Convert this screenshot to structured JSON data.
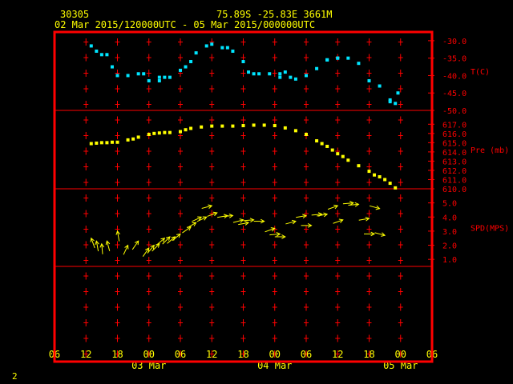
{
  "header": {
    "station_id": "30305",
    "location": "75.89S   -25.83E   3661M",
    "time_range": "02 Mar 2015/120000UTC - 05 Mar 2015/000000UTC"
  },
  "footer": {
    "page": "2"
  },
  "colors": {
    "background": "#000000",
    "frame": "#ff0000",
    "grid": "#ff0000",
    "axis_text": "#ffff00",
    "header_text": "#ffff00",
    "temperature": "#00e5ff",
    "pressure": "#ffff00",
    "wind": "#ffff00"
  },
  "chart_data": [
    {
      "type": "scatter",
      "panel": "temperature",
      "ylabel": "T(C)",
      "ylim": [
        -50,
        -27.5
      ],
      "yticks": [
        -30,
        -35,
        -40,
        -45,
        -50
      ],
      "ytick_labels": [
        "-30.0",
        "-35.0",
        "-40.0",
        "-45.0",
        "-50.0"
      ],
      "x": [
        "02 Mar 13:00",
        "02 Mar 14:00",
        "02 Mar 15:00",
        "02 Mar 16:00",
        "02 Mar 17:00",
        "02 Mar 18:00",
        "02 Mar 20:00",
        "02 Mar 22:00",
        "02 Mar 23:00",
        "03 Mar 02:00",
        "03 Mar 03:00",
        "03 Mar 04:00",
        "03 Mar 06:00",
        "03 Mar 07:00",
        "03 Mar 08:00",
        "03 Mar 09:00",
        "03 Mar 11:00",
        "03 Mar 12:00",
        "03 Mar 14:00",
        "03 Mar 15:00",
        "03 Mar 16:00",
        "03 Mar 18:00",
        "03 Mar 19:00",
        "03 Mar 20:00",
        "03 Mar 21:00",
        "03 Mar 23:00",
        "04 Mar 01:00",
        "04 Mar 02:00",
        "04 Mar 03:00",
        "04 Mar 04:00",
        "04 Mar 06:00",
        "04 Mar 08:00",
        "04 Mar 10:00",
        "04 Mar 12:00",
        "04 Mar 14:00",
        "04 Mar 16:00",
        "04 Mar 18:00",
        "04 Mar 20:00",
        "04 Mar 22:00",
        "04 Mar 23:00"
      ],
      "values": [
        -31.5,
        -33,
        -34,
        -34,
        -37.5,
        -40,
        -40,
        -39.5,
        -39.5,
        -41.5,
        -40.5,
        -40.5,
        -38.5,
        -37.5,
        -36,
        -33.5,
        -31.5,
        -31,
        -32,
        -32,
        -33,
        -36,
        -39,
        -39.5,
        -39.5,
        -39.5,
        -39.5,
        -39,
        -40.5,
        -41,
        -40,
        -38,
        -35.5,
        -35,
        -35,
        -36.5,
        -41.5,
        -43,
        -47,
        -48
      ],
      "values_extra": [
        {
          "x": "03 Mar 00:00",
          "y": -41.5
        },
        {
          "x": "03 Mar 02:00",
          "y": -40.5
        },
        {
          "x": "04 Mar 01:00",
          "y": -40.5
        },
        {
          "x": "04 Mar 10:00",
          "y": -35.5
        },
        {
          "x": "04 Mar 12:00",
          "y": -35
        },
        {
          "x": "04 Mar 22:00",
          "y": -47.5
        },
        {
          "x": "04 Mar 23:30",
          "y": -45
        }
      ]
    },
    {
      "type": "scatter",
      "panel": "pressure",
      "ylabel": "Pre (mb)",
      "ylim": [
        610,
        618.5
      ],
      "yticks": [
        610,
        611,
        612,
        613,
        614,
        615,
        616,
        617
      ],
      "ytick_labels": [
        "610.0",
        "611.0",
        "612.0",
        "613.0",
        "614.0",
        "615.0",
        "616.0",
        "617.0"
      ],
      "x": [
        "02 Mar 13:00",
        "02 Mar 14:00",
        "02 Mar 15:00",
        "02 Mar 16:00",
        "02 Mar 17:00",
        "02 Mar 18:00",
        "02 Mar 20:00",
        "02 Mar 21:00",
        "02 Mar 22:00",
        "03 Mar 00:00",
        "03 Mar 01:00",
        "03 Mar 02:00",
        "03 Mar 03:00",
        "03 Mar 04:00",
        "03 Mar 06:00",
        "03 Mar 07:00",
        "03 Mar 08:00",
        "03 Mar 10:00",
        "03 Mar 12:00",
        "03 Mar 14:00",
        "03 Mar 16:00",
        "03 Mar 18:00",
        "03 Mar 20:00",
        "03 Mar 22:00",
        "04 Mar 00:00",
        "04 Mar 02:00",
        "04 Mar 04:00",
        "04 Mar 06:00",
        "04 Mar 08:00",
        "04 Mar 09:00",
        "04 Mar 10:00",
        "04 Mar 11:00",
        "04 Mar 12:00",
        "04 Mar 13:00",
        "04 Mar 14:00",
        "04 Mar 16:00",
        "04 Mar 18:00",
        "04 Mar 19:00",
        "04 Mar 20:00",
        "04 Mar 21:00",
        "04 Mar 22:00",
        "04 Mar 23:00"
      ],
      "values": [
        614.9,
        614.95,
        615,
        615,
        615.05,
        615.05,
        615.3,
        615.4,
        615.6,
        615.9,
        616,
        616.05,
        616.1,
        616.1,
        616.2,
        616.4,
        616.55,
        616.7,
        616.8,
        616.8,
        616.8,
        616.85,
        616.9,
        616.9,
        616.85,
        616.6,
        616.3,
        615.9,
        615.2,
        614.9,
        614.6,
        614.2,
        613.8,
        613.5,
        613.1,
        612.5,
        611.9,
        611.5,
        611.3,
        611,
        610.6,
        610.1
      ]
    },
    {
      "type": "wind_barb",
      "panel": "wind",
      "ylabel": "SPD(MPS)",
      "ylim": [
        0.5,
        6.0
      ],
      "yticks": [
        1,
        2,
        3,
        4,
        5
      ],
      "ytick_labels": [
        "1.0",
        "2.0",
        "3.0",
        "4.0",
        "5.0"
      ],
      "x": [
        "02 Mar 13:00",
        "02 Mar 14:00",
        "02 Mar 15:00",
        "02 Mar 16:00",
        "02 Mar 18:00",
        "02 Mar 20:00",
        "02 Mar 22:00",
        "03 Mar 00:00",
        "03 Mar 01:00",
        "03 Mar 02:00",
        "03 Mar 03:00",
        "03 Mar 04:00",
        "03 Mar 05:00",
        "03 Mar 06:00",
        "03 Mar 08:00",
        "03 Mar 09:00",
        "03 Mar 10:00",
        "03 Mar 11:00",
        "03 Mar 12:00",
        "03 Mar 13:00",
        "03 Mar 15:00",
        "03 Mar 16:00",
        "03 Mar 18:00",
        "03 Mar 19:00",
        "03 Mar 20:00",
        "03 Mar 22:00",
        "04 Mar 00:00",
        "04 Mar 01:00",
        "04 Mar 02:00",
        "04 Mar 04:00",
        "04 Mar 06:00",
        "04 Mar 07:00",
        "04 Mar 09:00",
        "04 Mar 10:00",
        "04 Mar 12:00",
        "04 Mar 13:00",
        "04 Mar 15:00",
        "04 Mar 16:00",
        "04 Mar 18:00",
        "04 Mar 19:00",
        "04 Mar 20:00",
        "04 Mar 21:00"
      ],
      "speed": [
        2.5,
        2.3,
        2.1,
        2.3,
        3.0,
        2.0,
        2.3,
        1.8,
        2.0,
        2.1,
        2.5,
        2.6,
        2.6,
        2.8,
        3.3,
        3.6,
        4.0,
        4.0,
        4.8,
        4.3,
        4.1,
        4.1,
        3.8,
        3.6,
        3.8,
        3.7,
        3.2,
        2.8,
        2.6,
        3.7,
        4.1,
        3.4,
        4.2,
        4.2,
        4.8,
        3.8,
        5.0,
        4.9,
        3.9,
        2.8,
        4.6,
        2.7
      ],
      "from_direction_deg": [
        160,
        170,
        175,
        165,
        170,
        205,
        215,
        215,
        220,
        225,
        230,
        225,
        230,
        230,
        235,
        240,
        245,
        245,
        255,
        250,
        260,
        265,
        255,
        260,
        265,
        270,
        250,
        265,
        270,
        255,
        260,
        270,
        265,
        260,
        250,
        250,
        265,
        265,
        260,
        270,
        285,
        285
      ]
    }
  ],
  "x_axis": {
    "tick_labels": [
      "06",
      "12",
      "18",
      "00",
      "06",
      "12",
      "18",
      "00",
      "06",
      "12",
      "18",
      "00",
      "06"
    ],
    "date_labels": [
      {
        "label": "03 Mar",
        "at": "03 Mar 00:00"
      },
      {
        "label": "04 Mar",
        "at": "04 Mar 00:00"
      },
      {
        "label": "05 Mar",
        "at": "05 Mar 00:00"
      }
    ],
    "range": [
      "02 Mar 06:00",
      "05 Mar 06:00"
    ]
  }
}
